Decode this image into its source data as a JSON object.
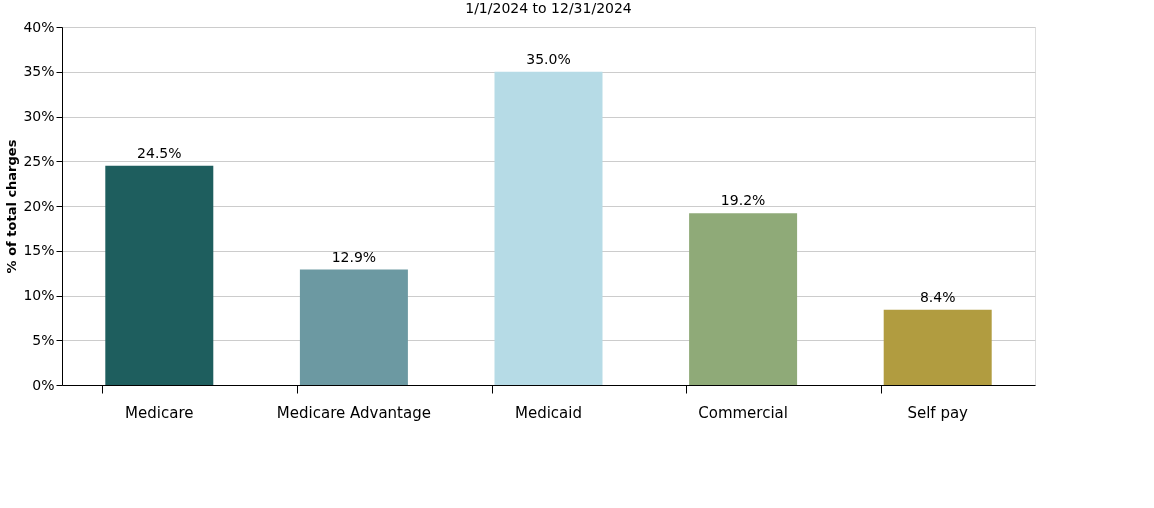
{
  "chart_data": {
    "type": "bar",
    "title": "1/1/2024 to 12/31/2024",
    "ylabel": "% of total charges",
    "categories": [
      "Medicare",
      "Medicare Advantage",
      "Medicaid",
      "Commercial",
      "Self pay"
    ],
    "values": [
      24.5,
      12.9,
      35.0,
      19.2,
      8.4
    ],
    "colors": [
      "#1e5e5e",
      "#6c99a2",
      "#b6dbe6",
      "#8faa78",
      "#b19c40"
    ],
    "value_labels": [
      "24.5%",
      "12.9%",
      "35.0%",
      "19.2%",
      "8.4%"
    ],
    "ylim": [
      0,
      40
    ],
    "yticks": [
      {
        "value": 0,
        "label": "0%"
      },
      {
        "value": 5,
        "label": "5%"
      },
      {
        "value": 10,
        "label": "10%"
      },
      {
        "value": 15,
        "label": "15%"
      },
      {
        "value": 20,
        "label": "20%"
      },
      {
        "value": 25,
        "label": "25%"
      },
      {
        "value": 30,
        "label": "30%"
      },
      {
        "value": 35,
        "label": "35%"
      },
      {
        "value": 40,
        "label": "40%"
      }
    ],
    "grid": "y"
  }
}
